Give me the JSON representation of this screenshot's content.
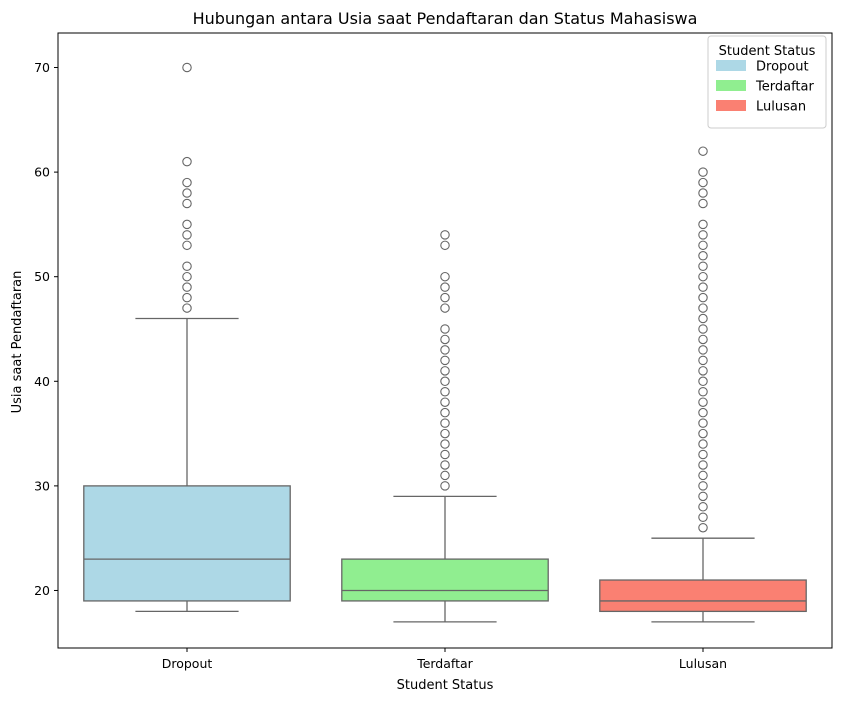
{
  "chart_data": {
    "type": "box",
    "title": "Hubungan antara Usia saat Pendaftaran dan Status Mahasiswa",
    "xlabel": "Student Status",
    "ylabel": "Usia saat Pendaftaran",
    "ylim": [
      14.5,
      73.3
    ],
    "yticks": [
      20,
      30,
      40,
      50,
      60,
      70
    ],
    "grid": false,
    "legend": {
      "title": "Student Status",
      "placement": "top-right",
      "entries": [
        "Dropout",
        "Terdaftar",
        "Lulusan"
      ]
    },
    "categories": [
      "Dropout",
      "Terdaftar",
      "Lulusan"
    ],
    "boxes": [
      {
        "name": "Dropout",
        "color": "#add8e6",
        "whisker_low": 18,
        "q1": 19,
        "median": 23,
        "q3": 30,
        "whisker_high": 46,
        "outliers": [
          47,
          48,
          49,
          50,
          51,
          53,
          54,
          55,
          57,
          58,
          59,
          61,
          70
        ]
      },
      {
        "name": "Terdaftar",
        "color": "#90ee90",
        "whisker_low": 17,
        "q1": 19,
        "median": 20,
        "q3": 23,
        "whisker_high": 29,
        "outliers": [
          30,
          31,
          32,
          33,
          34,
          35,
          36,
          37,
          38,
          39,
          40,
          41,
          42,
          43,
          44,
          45,
          47,
          48,
          49,
          50,
          53,
          54
        ]
      },
      {
        "name": "Lulusan",
        "color": "#fa8072",
        "whisker_low": 17,
        "q1": 18,
        "median": 19,
        "q3": 21,
        "whisker_high": 25,
        "outliers": [
          26,
          27,
          28,
          29,
          30,
          31,
          32,
          33,
          34,
          35,
          36,
          37,
          38,
          39,
          40,
          41,
          42,
          43,
          44,
          45,
          46,
          47,
          48,
          49,
          50,
          51,
          52,
          53,
          54,
          55,
          57,
          58,
          59,
          60,
          62
        ]
      }
    ]
  }
}
